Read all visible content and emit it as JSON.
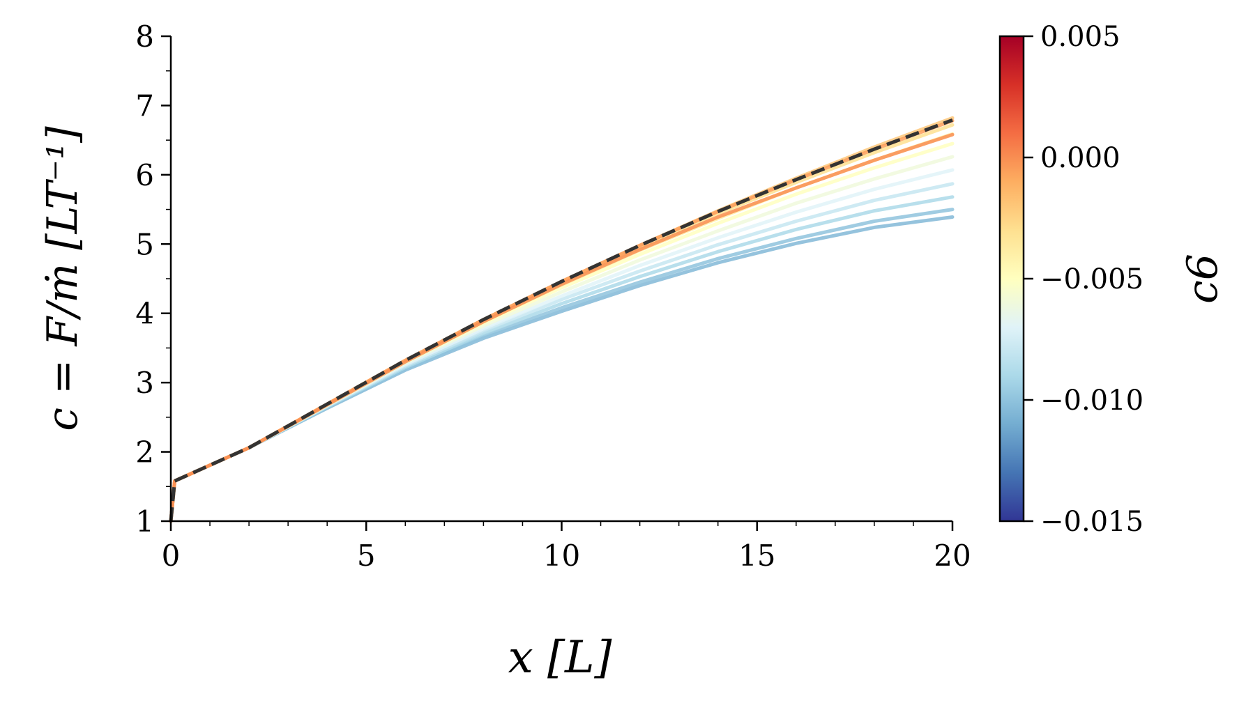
{
  "chart_data": {
    "type": "line",
    "xlabel": "x [L]",
    "ylabel": "c = F/ṁ [LT⁻¹]",
    "xlim": [
      0,
      20
    ],
    "ylim": [
      1,
      8
    ],
    "xticks": [
      0,
      5,
      10,
      15,
      20
    ],
    "yticks": [
      1,
      2,
      3,
      4,
      5,
      6,
      7,
      8
    ],
    "x": [
      0,
      0.1,
      2,
      4,
      6,
      8,
      10,
      12,
      14,
      16,
      18,
      20
    ],
    "grid": false,
    "colorbar": {
      "label": "c6",
      "range": [
        -0.015,
        0.005
      ],
      "ticks": [
        0.005,
        0.0,
        -0.005,
        -0.01,
        -0.015
      ],
      "tick_labels": [
        "0.005",
        "0.000",
        "−0.005",
        "−0.010",
        "−0.015"
      ],
      "colormap": [
        "#313695",
        "#4575b4",
        "#74add1",
        "#abd9e9",
        "#e0f3f8",
        "#ffffbf",
        "#fee090",
        "#fdae61",
        "#f46d43",
        "#d73027",
        "#a50026"
      ]
    },
    "series": [
      {
        "c6": -0.0105,
        "values": [
          1.0,
          1.58,
          2.06,
          2.63,
          3.18,
          3.64,
          4.03,
          4.4,
          4.73,
          5.01,
          5.24,
          5.39
        ]
      },
      {
        "c6": -0.01,
        "values": [
          1.0,
          1.58,
          2.06,
          2.64,
          3.2,
          3.67,
          4.08,
          4.45,
          4.79,
          5.08,
          5.33,
          5.5
        ]
      },
      {
        "c6": -0.009,
        "values": [
          1.0,
          1.58,
          2.06,
          2.65,
          3.22,
          3.71,
          4.14,
          4.53,
          4.89,
          5.21,
          5.48,
          5.68
        ]
      },
      {
        "c6": -0.008,
        "values": [
          1.0,
          1.58,
          2.06,
          2.66,
          3.24,
          3.75,
          4.2,
          4.61,
          4.99,
          5.33,
          5.63,
          5.87
        ]
      },
      {
        "c6": -0.007,
        "values": [
          1.0,
          1.58,
          2.06,
          2.67,
          3.26,
          3.78,
          4.25,
          4.69,
          5.09,
          5.46,
          5.79,
          6.07
        ]
      },
      {
        "c6": -0.006,
        "values": [
          1.0,
          1.58,
          2.06,
          2.67,
          3.28,
          3.82,
          4.31,
          4.77,
          5.19,
          5.59,
          5.94,
          6.26
        ]
      },
      {
        "c6": -0.005,
        "values": [
          1.0,
          1.58,
          2.06,
          2.68,
          3.3,
          3.86,
          4.37,
          4.85,
          5.3,
          5.72,
          6.1,
          6.45
        ]
      },
      {
        "c6": -0.004,
        "values": [
          1.0,
          1.58,
          2.06,
          2.68,
          3.31,
          3.88,
          4.41,
          4.91,
          5.37,
          5.81,
          6.21,
          6.59
        ]
      },
      {
        "c6": -0.003,
        "values": [
          1.0,
          1.58,
          2.06,
          2.69,
          3.32,
          3.9,
          4.44,
          4.95,
          5.44,
          5.89,
          6.32,
          6.72
        ]
      },
      {
        "c6": -0.002,
        "values": [
          1.0,
          1.58,
          2.06,
          2.69,
          3.32,
          3.91,
          4.46,
          4.98,
          5.48,
          5.95,
          6.4,
          6.82
        ]
      },
      {
        "c6": -0.0005,
        "values": [
          1.0,
          1.58,
          2.06,
          2.69,
          3.32,
          3.91,
          4.46,
          4.98,
          5.47,
          5.93,
          6.37,
          6.78
        ]
      },
      {
        "c6": 0.0,
        "values": [
          1.0,
          1.58,
          2.06,
          2.68,
          3.3,
          3.88,
          4.42,
          4.92,
          5.39,
          5.81,
          6.21,
          6.58
        ]
      }
    ],
    "reference": {
      "style": "dashed",
      "color": "#333333",
      "values": [
        1.0,
        1.58,
        2.06,
        2.69,
        3.32,
        3.91,
        4.46,
        4.98,
        5.47,
        5.93,
        6.37,
        6.79
      ]
    }
  }
}
